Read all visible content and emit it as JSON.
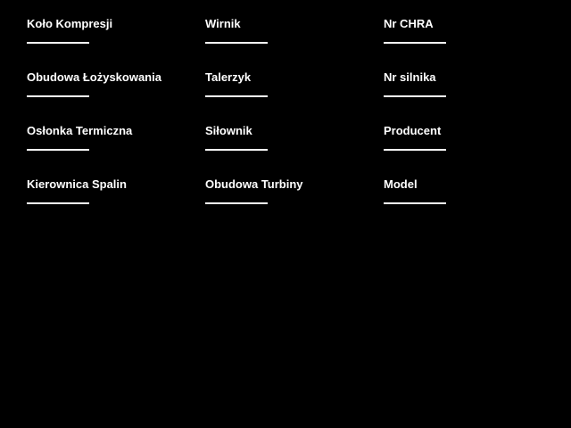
{
  "page": {
    "background_color": "#000000",
    "text_color": "#ffffff"
  },
  "form": {
    "columns": [
      {
        "fields": [
          {
            "label": "Koło Kompresji",
            "value": ""
          },
          {
            "label": "Obudowa Łożyskowania",
            "value": ""
          },
          {
            "label": "Osłonka Termiczna",
            "value": ""
          },
          {
            "label": "Kierownica Spalin",
            "value": ""
          }
        ]
      },
      {
        "fields": [
          {
            "label": "Wirnik",
            "value": ""
          },
          {
            "label": "Talerzyk",
            "value": ""
          },
          {
            "label": "Siłownik",
            "value": ""
          },
          {
            "label": "Obudowa Turbiny",
            "value": ""
          }
        ]
      },
      {
        "fields": [
          {
            "label": "Nr CHRA",
            "value": ""
          },
          {
            "label": "Nr silnika",
            "value": ""
          },
          {
            "label": "Producent",
            "value": ""
          },
          {
            "label": "Model",
            "value": ""
          }
        ]
      }
    ]
  }
}
